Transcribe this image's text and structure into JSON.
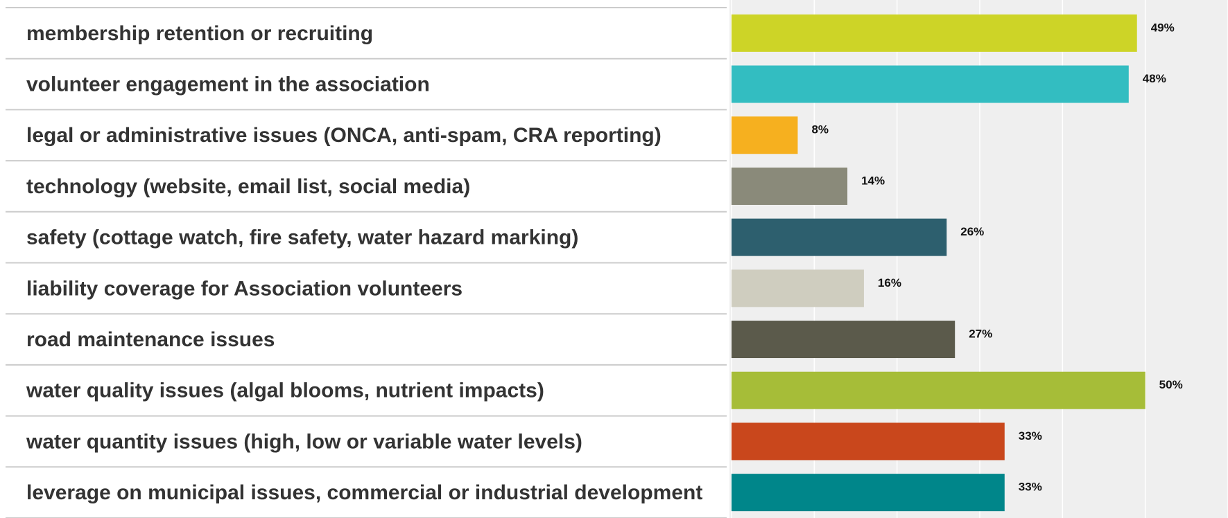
{
  "chart_data": {
    "type": "bar",
    "orientation": "horizontal",
    "categories": [
      "membership retention or recruiting",
      "volunteer engagement in the association",
      "legal or administrative issues (ONCA, anti-spam, CRA reporting)",
      "technology (website, email list, social media)",
      "safety (cottage watch, fire safety, water hazard marking)",
      "liability coverage for Association volunteers",
      "road maintenance issues",
      "water quality issues (algal blooms, nutrient impacts)",
      "water quantity issues (high, low or variable water levels)",
      "leverage on municipal issues, commercial or industrial development"
    ],
    "values": [
      49,
      48,
      8,
      14,
      26,
      16,
      27,
      50,
      33,
      33
    ],
    "value_labels": [
      "49%",
      "48%",
      "8%",
      "14%",
      "26%",
      "16%",
      "27%",
      "50%",
      "33%",
      "33%"
    ],
    "colors": [
      "#cdd427",
      "#33bdc1",
      "#f6b01f",
      "#8a8a7a",
      "#2d5f6e",
      "#cfcdbf",
      "#5b5a4b",
      "#a6bd38",
      "#c9471c",
      "#00868a"
    ],
    "xlim": [
      0,
      60
    ],
    "xticks": [
      0,
      10,
      20,
      30,
      40,
      50,
      60
    ],
    "grid": true
  }
}
